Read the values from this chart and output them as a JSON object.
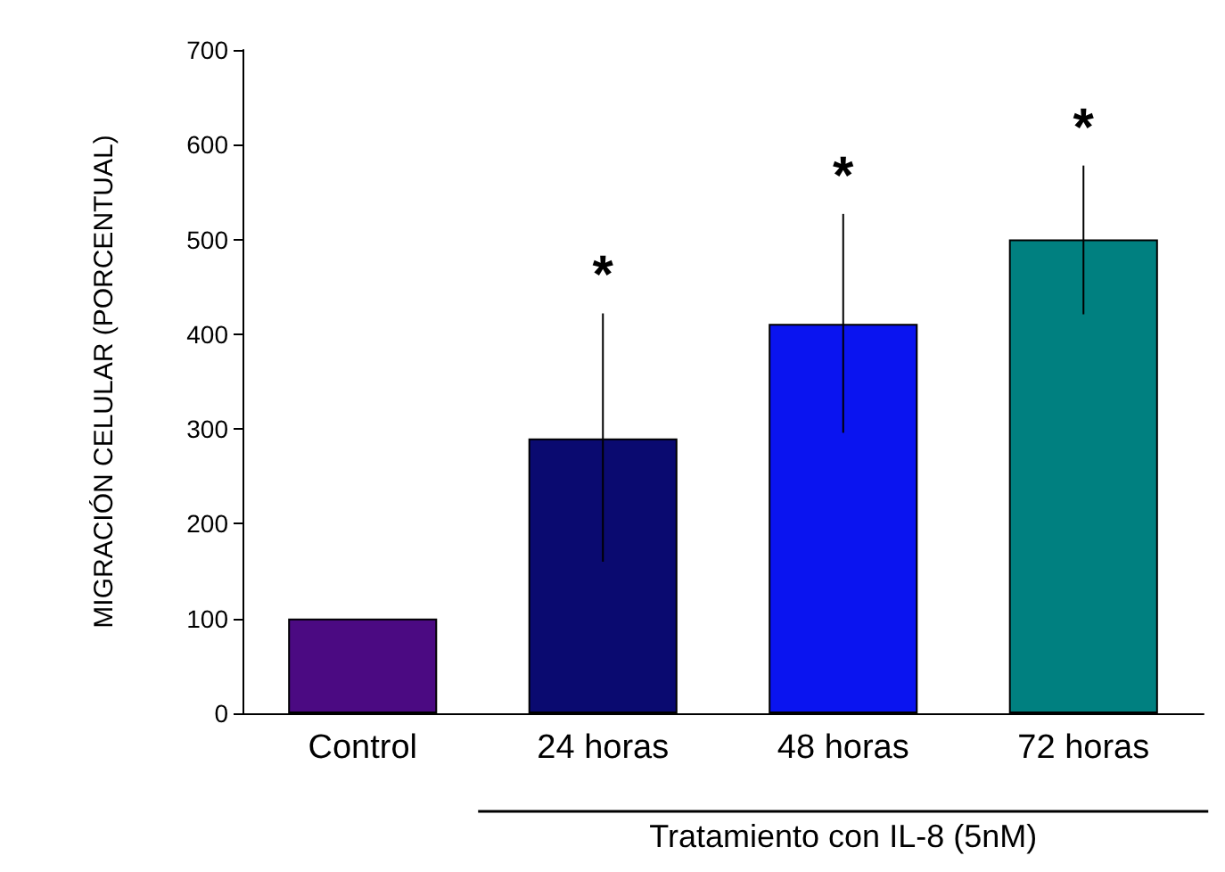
{
  "chart_data": {
    "type": "bar",
    "ylabel": "MIGRACIÓN CELULAR (PORCENTUAL)",
    "categories": [
      "Control",
      "24 horas",
      "48 horas",
      "72 horas"
    ],
    "values": [
      100,
      290,
      411,
      500
    ],
    "colors": [
      "#4b0a82",
      "#0a0a70",
      "#0a14f0",
      "#008080"
    ],
    "errors": [
      null,
      [
        160,
        422
      ],
      [
        296,
        527
      ],
      [
        421,
        578
      ]
    ],
    "ylim": [
      0,
      700
    ],
    "yticks": [
      0,
      100,
      200,
      300,
      400,
      500,
      600,
      700
    ],
    "grid": false,
    "annotations": [
      {
        "text": "*",
        "x": "24 horas",
        "y": 422
      },
      {
        "text": "*",
        "x": "48 horas",
        "y": 527
      },
      {
        "text": "*",
        "x": "72 horas",
        "y": 578
      },
      "Tratamiento con IL-8 (5nM)"
    ]
  }
}
